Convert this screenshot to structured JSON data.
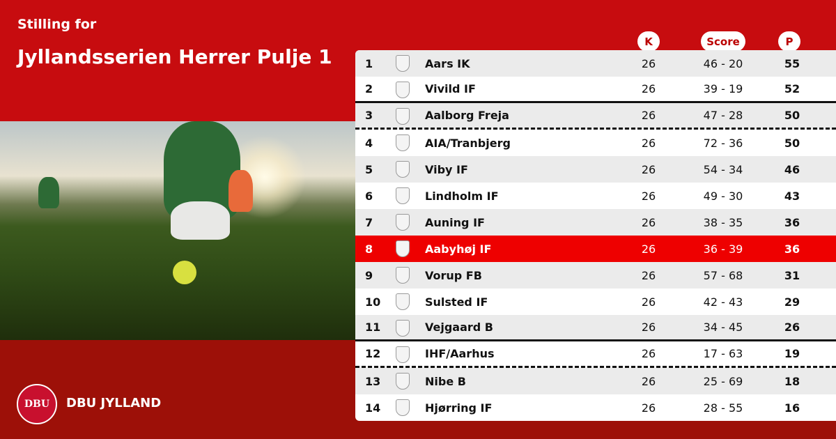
{
  "header": {
    "subtitle": "Stilling for",
    "title": "Jyllandsserien Herrer Pulje 1"
  },
  "columns": {
    "k": "K",
    "score": "Score",
    "p": "P"
  },
  "brand": {
    "name": "DBU JYLLAND",
    "logo_text": "DBU",
    "highlight_color": "#ee0000",
    "accent": "#c70c0f"
  },
  "rows": [
    {
      "rank": "1",
      "team": "Aars IK",
      "k": "26",
      "score": "46 - 20",
      "p": "55"
    },
    {
      "rank": "2",
      "team": "Vivild IF",
      "k": "26",
      "score": "39 - 19",
      "p": "52"
    },
    {
      "rank": "3",
      "team": "Aalborg Freja",
      "k": "26",
      "score": "47 - 28",
      "p": "50"
    },
    {
      "rank": "4",
      "team": "AIA/Tranbjerg",
      "k": "26",
      "score": "72 - 36",
      "p": "50"
    },
    {
      "rank": "5",
      "team": "Viby IF",
      "k": "26",
      "score": "54 - 34",
      "p": "46"
    },
    {
      "rank": "6",
      "team": "Lindholm IF",
      "k": "26",
      "score": "49 - 30",
      "p": "43"
    },
    {
      "rank": "7",
      "team": "Auning IF",
      "k": "26",
      "score": "38 - 35",
      "p": "36"
    },
    {
      "rank": "8",
      "team": "Aabyhøj IF",
      "k": "26",
      "score": "36 - 39",
      "p": "36",
      "highlighted": true
    },
    {
      "rank": "9",
      "team": "Vorup FB",
      "k": "26",
      "score": "57 - 68",
      "p": "31"
    },
    {
      "rank": "10",
      "team": "Sulsted IF",
      "k": "26",
      "score": "42 - 43",
      "p": "29"
    },
    {
      "rank": "11",
      "team": "Vejgaard B",
      "k": "26",
      "score": "34 - 45",
      "p": "26"
    },
    {
      "rank": "12",
      "team": "IHF/Aarhus",
      "k": "26",
      "score": "17 - 63",
      "p": "19"
    },
    {
      "rank": "13",
      "team": "Nibe B",
      "k": "26",
      "score": "25 - 69",
      "p": "18"
    },
    {
      "rank": "14",
      "team": "Hjørring IF",
      "k": "26",
      "score": "28 - 55",
      "p": "16"
    }
  ]
}
